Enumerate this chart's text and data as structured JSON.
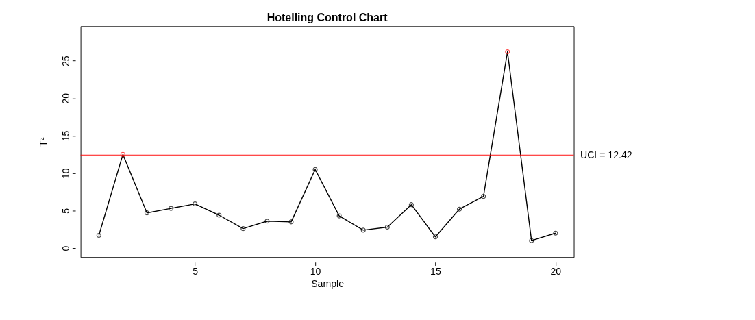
{
  "chart_data": {
    "type": "line",
    "title": "Hotelling Control Chart",
    "xlabel": "Sample",
    "ylabel": "T²",
    "x": [
      1,
      2,
      3,
      4,
      5,
      6,
      7,
      8,
      9,
      10,
      11,
      12,
      13,
      14,
      15,
      16,
      17,
      18,
      19,
      20
    ],
    "series": [
      {
        "color": "#000000",
        "values": [
          1.7,
          12.5,
          4.7,
          5.3,
          5.9,
          4.4,
          2.6,
          3.6,
          3.5,
          10.5,
          4.3,
          2.4,
          2.8,
          5.8,
          1.5,
          5.2,
          6.9,
          26.2,
          1.0,
          2.0
        ],
        "colors": [
          "#000000",
          "#ff0000",
          "#000000",
          "#000000",
          "#000000",
          "#000000",
          "#000000",
          "#000000",
          "#000000",
          "#000000",
          "#000000",
          "#000000",
          "#000000",
          "#000000",
          "#000000",
          "#000000",
          "#000000",
          "#ff0000",
          "#000000",
          "#000000"
        ]
      }
    ],
    "xlim": [
      0.24,
      20.76
    ],
    "xticks": [
      5,
      10,
      15,
      20
    ],
    "ylim": [
      -1.2,
      29.6
    ],
    "yticks": [
      0,
      5,
      10,
      15,
      20,
      25
    ],
    "ref_lines": [
      {
        "axis": "y",
        "value": 12.42,
        "label": "UCL= 12.42",
        "color": "#ff0000",
        "line_style": "solid"
      }
    ],
    "marker": "circle",
    "line_style": "solid",
    "grid": false
  }
}
